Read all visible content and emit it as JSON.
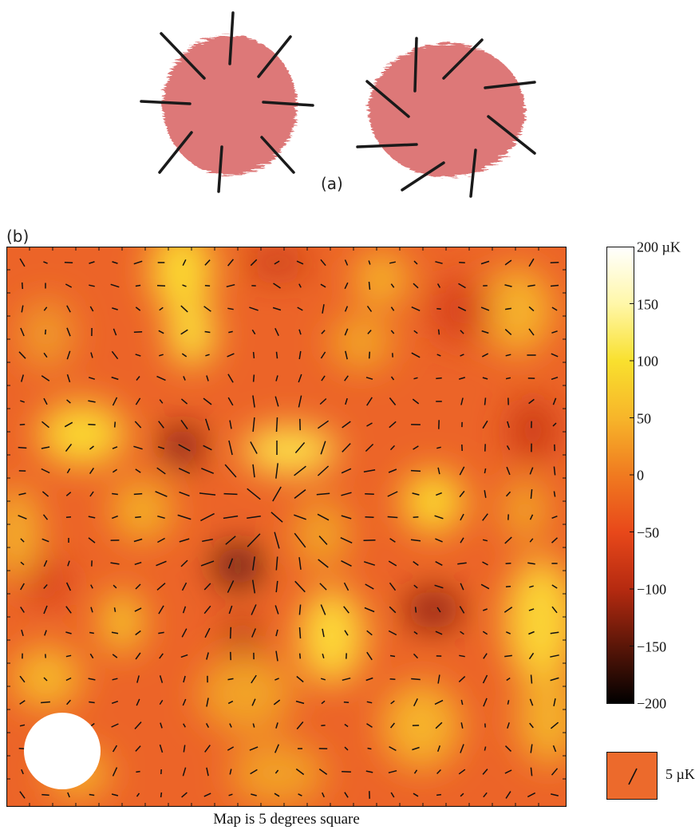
{
  "panel_a": {
    "label": "(a)",
    "shapes": [
      {
        "name": "radial-pattern",
        "pattern": "radial"
      },
      {
        "name": "tangential-pattern",
        "pattern": "tangential"
      }
    ]
  },
  "panel_b": {
    "label": "(b)",
    "caption": "Map is 5 degrees square",
    "beam": "white-disc"
  },
  "colorbar": {
    "min": -200,
    "max": 200,
    "ticks": [
      "200 µK",
      "150",
      "100",
      "50",
      "0",
      "−50",
      "−100",
      "−150",
      "−200"
    ],
    "tick_values": [
      200,
      150,
      100,
      50,
      0,
      -50,
      -100,
      -150,
      -200
    ],
    "colors": [
      "#000000",
      "#5a1608",
      "#b52a10",
      "#e8481a",
      "#f07a20",
      "#f7b52a",
      "#f9e02e",
      "#fff7a8",
      "#ffffff"
    ]
  },
  "scale_key": {
    "label": "5 µK",
    "box_color": "#ec6a2c"
  },
  "colors": {
    "ink": "#111111",
    "blob": "#d96464"
  }
}
